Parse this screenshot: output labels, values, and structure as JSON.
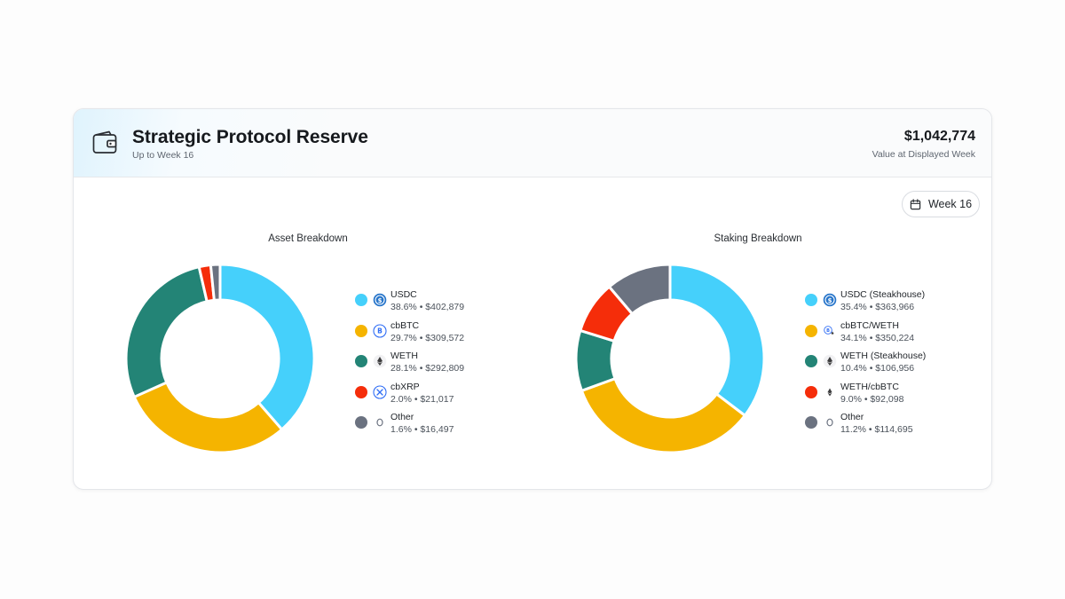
{
  "header": {
    "title": "Strategic Protocol Reserve",
    "subtitle": "Up to Week 16",
    "total_value": "$1,042,774",
    "total_label": "Value at Displayed Week"
  },
  "week_selector": {
    "label": "Week 16"
  },
  "chart_data": [
    {
      "type": "pie",
      "title": "Asset Breakdown",
      "series": [
        {
          "name": "USDC",
          "percent": 38.6,
          "value": "$402,879",
          "display_pct": "38.6%",
          "color": "#45d0fb",
          "icon": "usdc-icon"
        },
        {
          "name": "cbBTC",
          "percent": 29.7,
          "value": "$309,572",
          "display_pct": "29.7%",
          "color": "#f5b400",
          "icon": "cbbtc-icon"
        },
        {
          "name": "WETH",
          "percent": 28.1,
          "value": "$292,809",
          "display_pct": "28.1%",
          "color": "#238476",
          "icon": "eth-icon"
        },
        {
          "name": "cbXRP",
          "percent": 2.0,
          "value": "$21,017",
          "display_pct": "2.0%",
          "color": "#f52d0a",
          "icon": "xrp-icon"
        },
        {
          "name": "Other",
          "percent": 1.6,
          "value": "$16,497",
          "display_pct": "1.6%",
          "color": "#6b7280",
          "icon": "other-icon"
        }
      ]
    },
    {
      "type": "pie",
      "title": "Staking Breakdown",
      "series": [
        {
          "name": "USDC (Steakhouse)",
          "percent": 35.4,
          "value": "$363,966",
          "display_pct": "35.4%",
          "color": "#45d0fb",
          "icon": "usdc-icon"
        },
        {
          "name": "cbBTC/WETH",
          "percent": 34.1,
          "value": "$350,224",
          "display_pct": "34.1%",
          "color": "#f5b400",
          "icon": "cbbtc-weth-icon"
        },
        {
          "name": "WETH (Steakhouse)",
          "percent": 10.4,
          "value": "$106,956",
          "display_pct": "10.4%",
          "color": "#238476",
          "icon": "eth-icon"
        },
        {
          "name": "WETH/cbBTC",
          "percent": 9.0,
          "value": "$92,098",
          "display_pct": "9.0%",
          "color": "#f52d0a",
          "icon": "weth-cbbtc-icon"
        },
        {
          "name": "Other",
          "percent": 11.2,
          "value": "$114,695",
          "display_pct": "11.2%",
          "color": "#6b7280",
          "icon": "other-icon"
        }
      ]
    }
  ]
}
